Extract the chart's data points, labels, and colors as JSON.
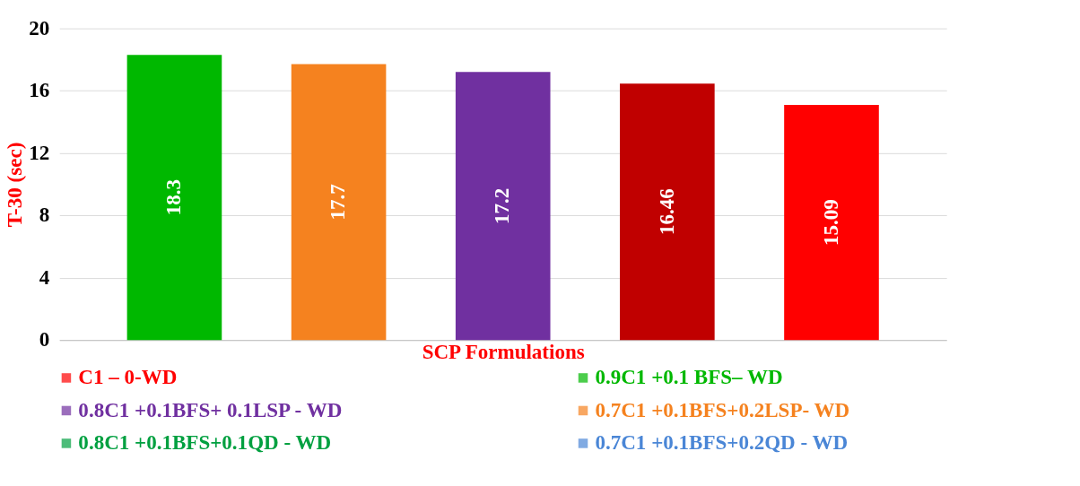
{
  "chart_data": {
    "type": "bar",
    "xlabel": "SCP Formulations",
    "ylabel": "T-30 (sec)",
    "categories": [
      null,
      null,
      null,
      null,
      null
    ],
    "series": [
      {
        "name": "C1 – 0-WD",
        "color": "#ff0000",
        "values": [
          null,
          null,
          null,
          null,
          15.09
        ]
      },
      {
        "name": "0.9C1 +0.1 BFS– WD",
        "color": "#00b800",
        "values": [
          18.3,
          null,
          null,
          null,
          null
        ]
      },
      {
        "name": "0.8C1 +0.1BFS+ 0.1LSP - WD",
        "color": "#7030a0",
        "values": [
          null,
          null,
          17.2,
          null,
          null
        ]
      },
      {
        "name": "0.7C1 +0.1BFS+0.2LSP- WD",
        "color": "#f5821f",
        "values": [
          null,
          17.7,
          null,
          null,
          null
        ]
      },
      {
        "name": "0.8C1 +0.1BFS+0.1QD - WD",
        "color": "#00a040",
        "values": [
          null,
          null,
          null,
          null,
          null
        ]
      },
      {
        "name": "0.7C1 +0.1BFS+0.2QD - WD",
        "color": "#4a86d6",
        "values": [
          null,
          null,
          null,
          null,
          null
        ]
      },
      {
        "color": "#c00000",
        "values": [
          null,
          null,
          null,
          16.46,
          null
        ]
      }
    ],
    "ylim": [
      0,
      20
    ],
    "yticks": [
      0,
      4,
      8,
      12,
      16,
      20
    ],
    "grid": "y",
    "legend": "bottom",
    "tick_labels": "y",
    "data_labels": true
  }
}
